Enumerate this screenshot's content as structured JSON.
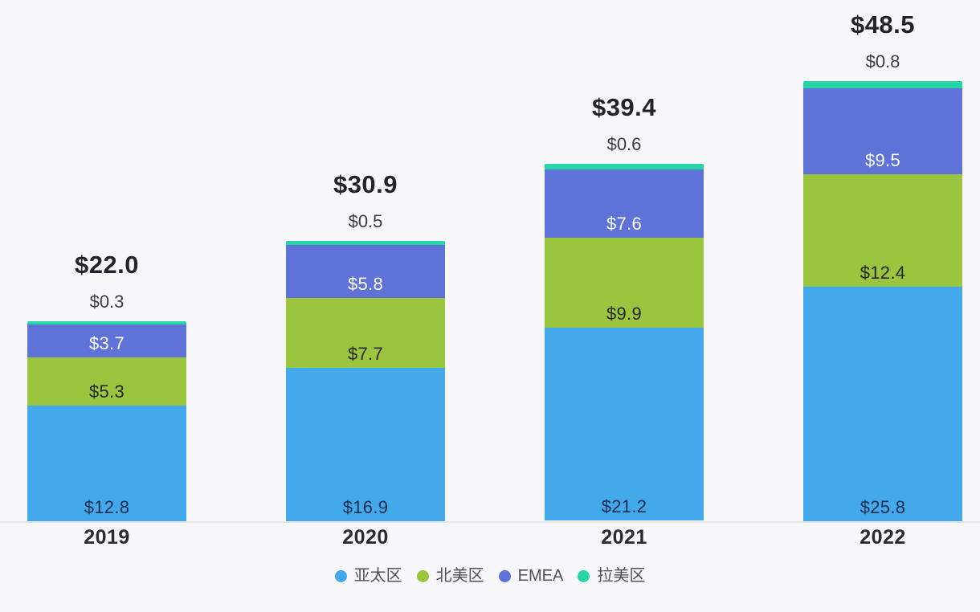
{
  "page": {
    "background": "#f7f7f9",
    "axis_line_color": "#e8e8ec"
  },
  "chart_data": {
    "type": "bar",
    "stacked": true,
    "grid": false,
    "legend_position": "bottom",
    "value_prefix": "$",
    "ylim": [
      0,
      48.5
    ],
    "categories": [
      "2019",
      "2020",
      "2021",
      "2022"
    ],
    "series": [
      {
        "key": "apac",
        "name": "亚太区",
        "color": "#44A9EA",
        "label_color": "#1C2E50",
        "label_position": "inside",
        "values": [
          12.8,
          16.9,
          21.2,
          25.8
        ]
      },
      {
        "key": "north-america",
        "name": "北美区",
        "color": "#9BC53F",
        "label_color": "#25282D",
        "label_position": "inside",
        "values": [
          5.3,
          7.7,
          9.9,
          12.4
        ]
      },
      {
        "key": "emea",
        "name": "EMEA",
        "color": "#5E72D8",
        "label_color": "#FFFFFF",
        "label_position": "inside",
        "values": [
          3.7,
          5.8,
          7.6,
          9.5
        ]
      },
      {
        "key": "latam",
        "name": "拉美区",
        "color": "#26D6A4",
        "label_color": "#3C3C43",
        "label_position": "above-bar",
        "values": [
          0.3,
          0.5,
          0.6,
          0.8
        ]
      }
    ],
    "totals": [
      22.0,
      30.9,
      39.4,
      48.5
    ],
    "total_labels": [
      "$22.0",
      "$30.9",
      "$39.4",
      "$48.5"
    ],
    "above_bar_labels": [
      "$0.3",
      "$0.5",
      "$0.6",
      "$0.8"
    ]
  }
}
